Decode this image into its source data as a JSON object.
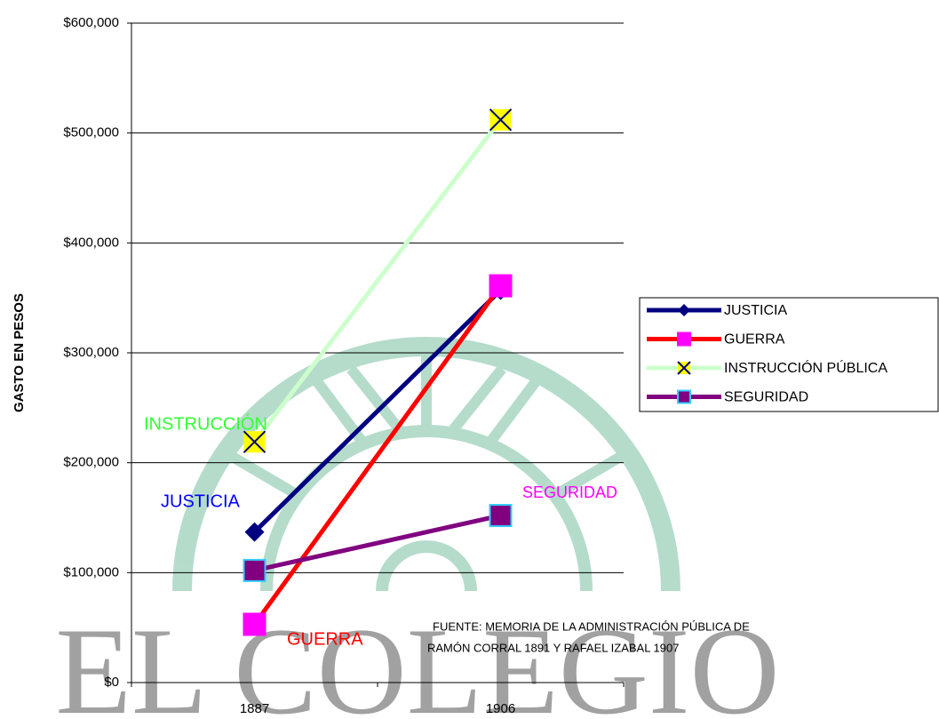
{
  "chart_data": {
    "type": "line",
    "y_label": "GASTO EN PESOS",
    "watermark": "EL COLEGIO",
    "categories": [
      "1887",
      "1906"
    ],
    "series": [
      {
        "name": "JUSTICIA",
        "color": "#000080",
        "marker": "diamond",
        "marker_color": "#000080",
        "marker_edge": "#000080",
        "values": [
          137000,
          357000
        ]
      },
      {
        "name": "GUERRA",
        "color": "#ff0000",
        "marker": "square",
        "marker_color": "#ff00ff",
        "marker_edge": "#ff00ff",
        "values": [
          53000,
          361000
        ]
      },
      {
        "name": "INSTRUCCIÓN PÚBLICA",
        "color": "#ccffcc",
        "marker": "x",
        "marker_color": "#ffff00",
        "marker_edge": "#000080",
        "values": [
          219000,
          512000
        ]
      },
      {
        "name": "SEGURIDAD",
        "color": "#800080",
        "marker": "square",
        "marker_color": "#800080",
        "marker_edge": "#33ccff",
        "values": [
          102000,
          152000
        ]
      }
    ],
    "annotations": [
      {
        "text": "INSTRUCCIÓN",
        "color": "#33ff33"
      },
      {
        "text": "JUSTICIA",
        "color": "#0000ff"
      },
      {
        "text": "SEGURIDAD",
        "color": "#ff00ff"
      },
      {
        "text": "GUERRA",
        "color": "#ff0000"
      },
      {
        "text": "FUENTE: MEMORIA DE LA ADMINISTRACIÓN PÚBLICA DE",
        "color": "#000000"
      },
      {
        "text": "RAMÓN CORRAL 1891  Y RAFAEL IZABAL 1907",
        "color": "#000000"
      }
    ],
    "ylim": [
      0,
      600000
    ],
    "yticks": [
      {
        "value": 0,
        "label": "$0"
      },
      {
        "value": 100000,
        "label": "$100,000"
      },
      {
        "value": 200000,
        "label": "$200,000"
      },
      {
        "value": 300000,
        "label": "$300,000"
      },
      {
        "value": 400000,
        "label": "$400,000"
      },
      {
        "value": 500000,
        "label": "$500,000"
      },
      {
        "value": 600000,
        "label": "$600,000"
      }
    ],
    "grid": true,
    "legend": "right"
  }
}
